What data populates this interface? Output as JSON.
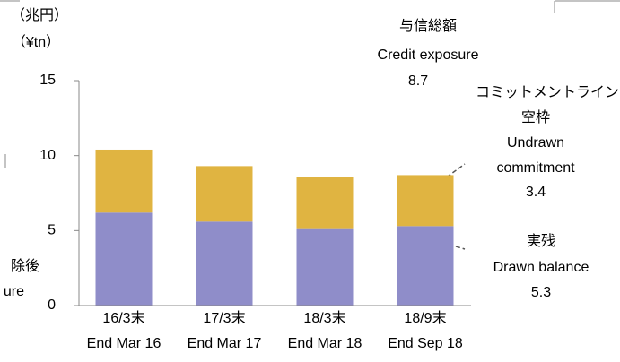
{
  "chart_data": {
    "type": "stacked_bar",
    "unit_labels": [
      "（兆円）",
      "（¥tn）"
    ],
    "categories": [
      [
        "16/3末",
        "End Mar 16"
      ],
      [
        "17/3末",
        "End Mar 17"
      ],
      [
        "18/3末",
        "End Mar 18"
      ],
      [
        "18/9末",
        "End Sep 18"
      ]
    ],
    "series": [
      {
        "name": "実残 Drawn balance",
        "color": "#8f8dc9",
        "values": [
          6.2,
          5.6,
          5.1,
          5.3
        ]
      },
      {
        "name": "コミットメントライン空枠 Undrawn commitment",
        "color": "#e0b441",
        "values": [
          4.2,
          3.7,
          3.5,
          3.4
        ]
      }
    ],
    "ylim": [
      0,
      15
    ],
    "yticks": [
      0,
      5,
      10,
      15
    ],
    "annotations": [
      {
        "lines": [
          "与信総額",
          "Credit exposure",
          "8.7"
        ]
      },
      {
        "lines": [
          "コミットメントライン",
          "空枠",
          "Undrawn",
          "commitment",
          "3.4"
        ]
      },
      {
        "lines": [
          "実残",
          "Drawn balance",
          "5.3"
        ]
      },
      {
        "lines": [
          "除後",
          "ure"
        ]
      }
    ]
  }
}
